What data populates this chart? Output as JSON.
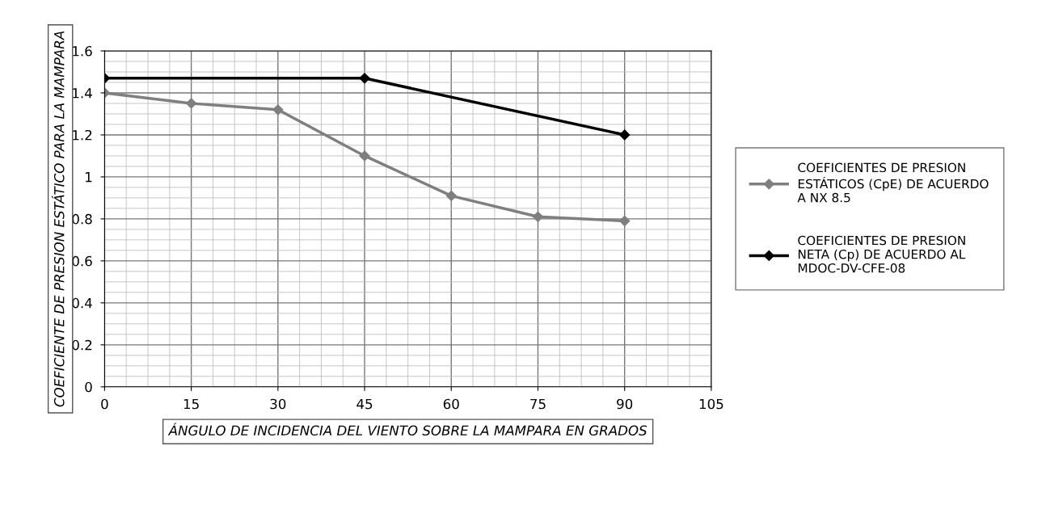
{
  "chart_data": {
    "type": "line",
    "xlabel": "ÁNGULO DE INCIDENCIA DEL VIENTO SOBRE LA MAMPARA EN GRADOS",
    "ylabel": "COEFICIENTE DE PRESION ESTÁTICO PARA LA MAMPARA",
    "xlim": [
      0,
      105
    ],
    "xticks": [
      0,
      15,
      30,
      45,
      60,
      75,
      90,
      105
    ],
    "ylim": [
      0,
      1.6
    ],
    "yticks": [
      0,
      0.2,
      0.4,
      0.6,
      0.8,
      1,
      1.2,
      1.4,
      1.6
    ],
    "grid": true,
    "legend": "right",
    "marker": "diamond",
    "line_style": "solid",
    "series": [
      {
        "name": "COEFICIENTES DE PRESION ESTÁTICOS (CpE) DE ACUERDO A NX 8.5",
        "color": "#7f7f7f",
        "x": [
          0,
          15,
          30,
          45,
          60,
          75,
          90
        ],
        "values": [
          1.4,
          1.35,
          1.32,
          1.1,
          0.91,
          0.81,
          0.79
        ]
      },
      {
        "name": "COEFICIENTES DE PRESION NETA (Cp) DE ACUERDO AL MDOC-DV-CFE-08",
        "color": "#000000",
        "x": [
          0,
          45,
          90
        ],
        "values": [
          1.47,
          1.47,
          1.2
        ]
      }
    ]
  }
}
